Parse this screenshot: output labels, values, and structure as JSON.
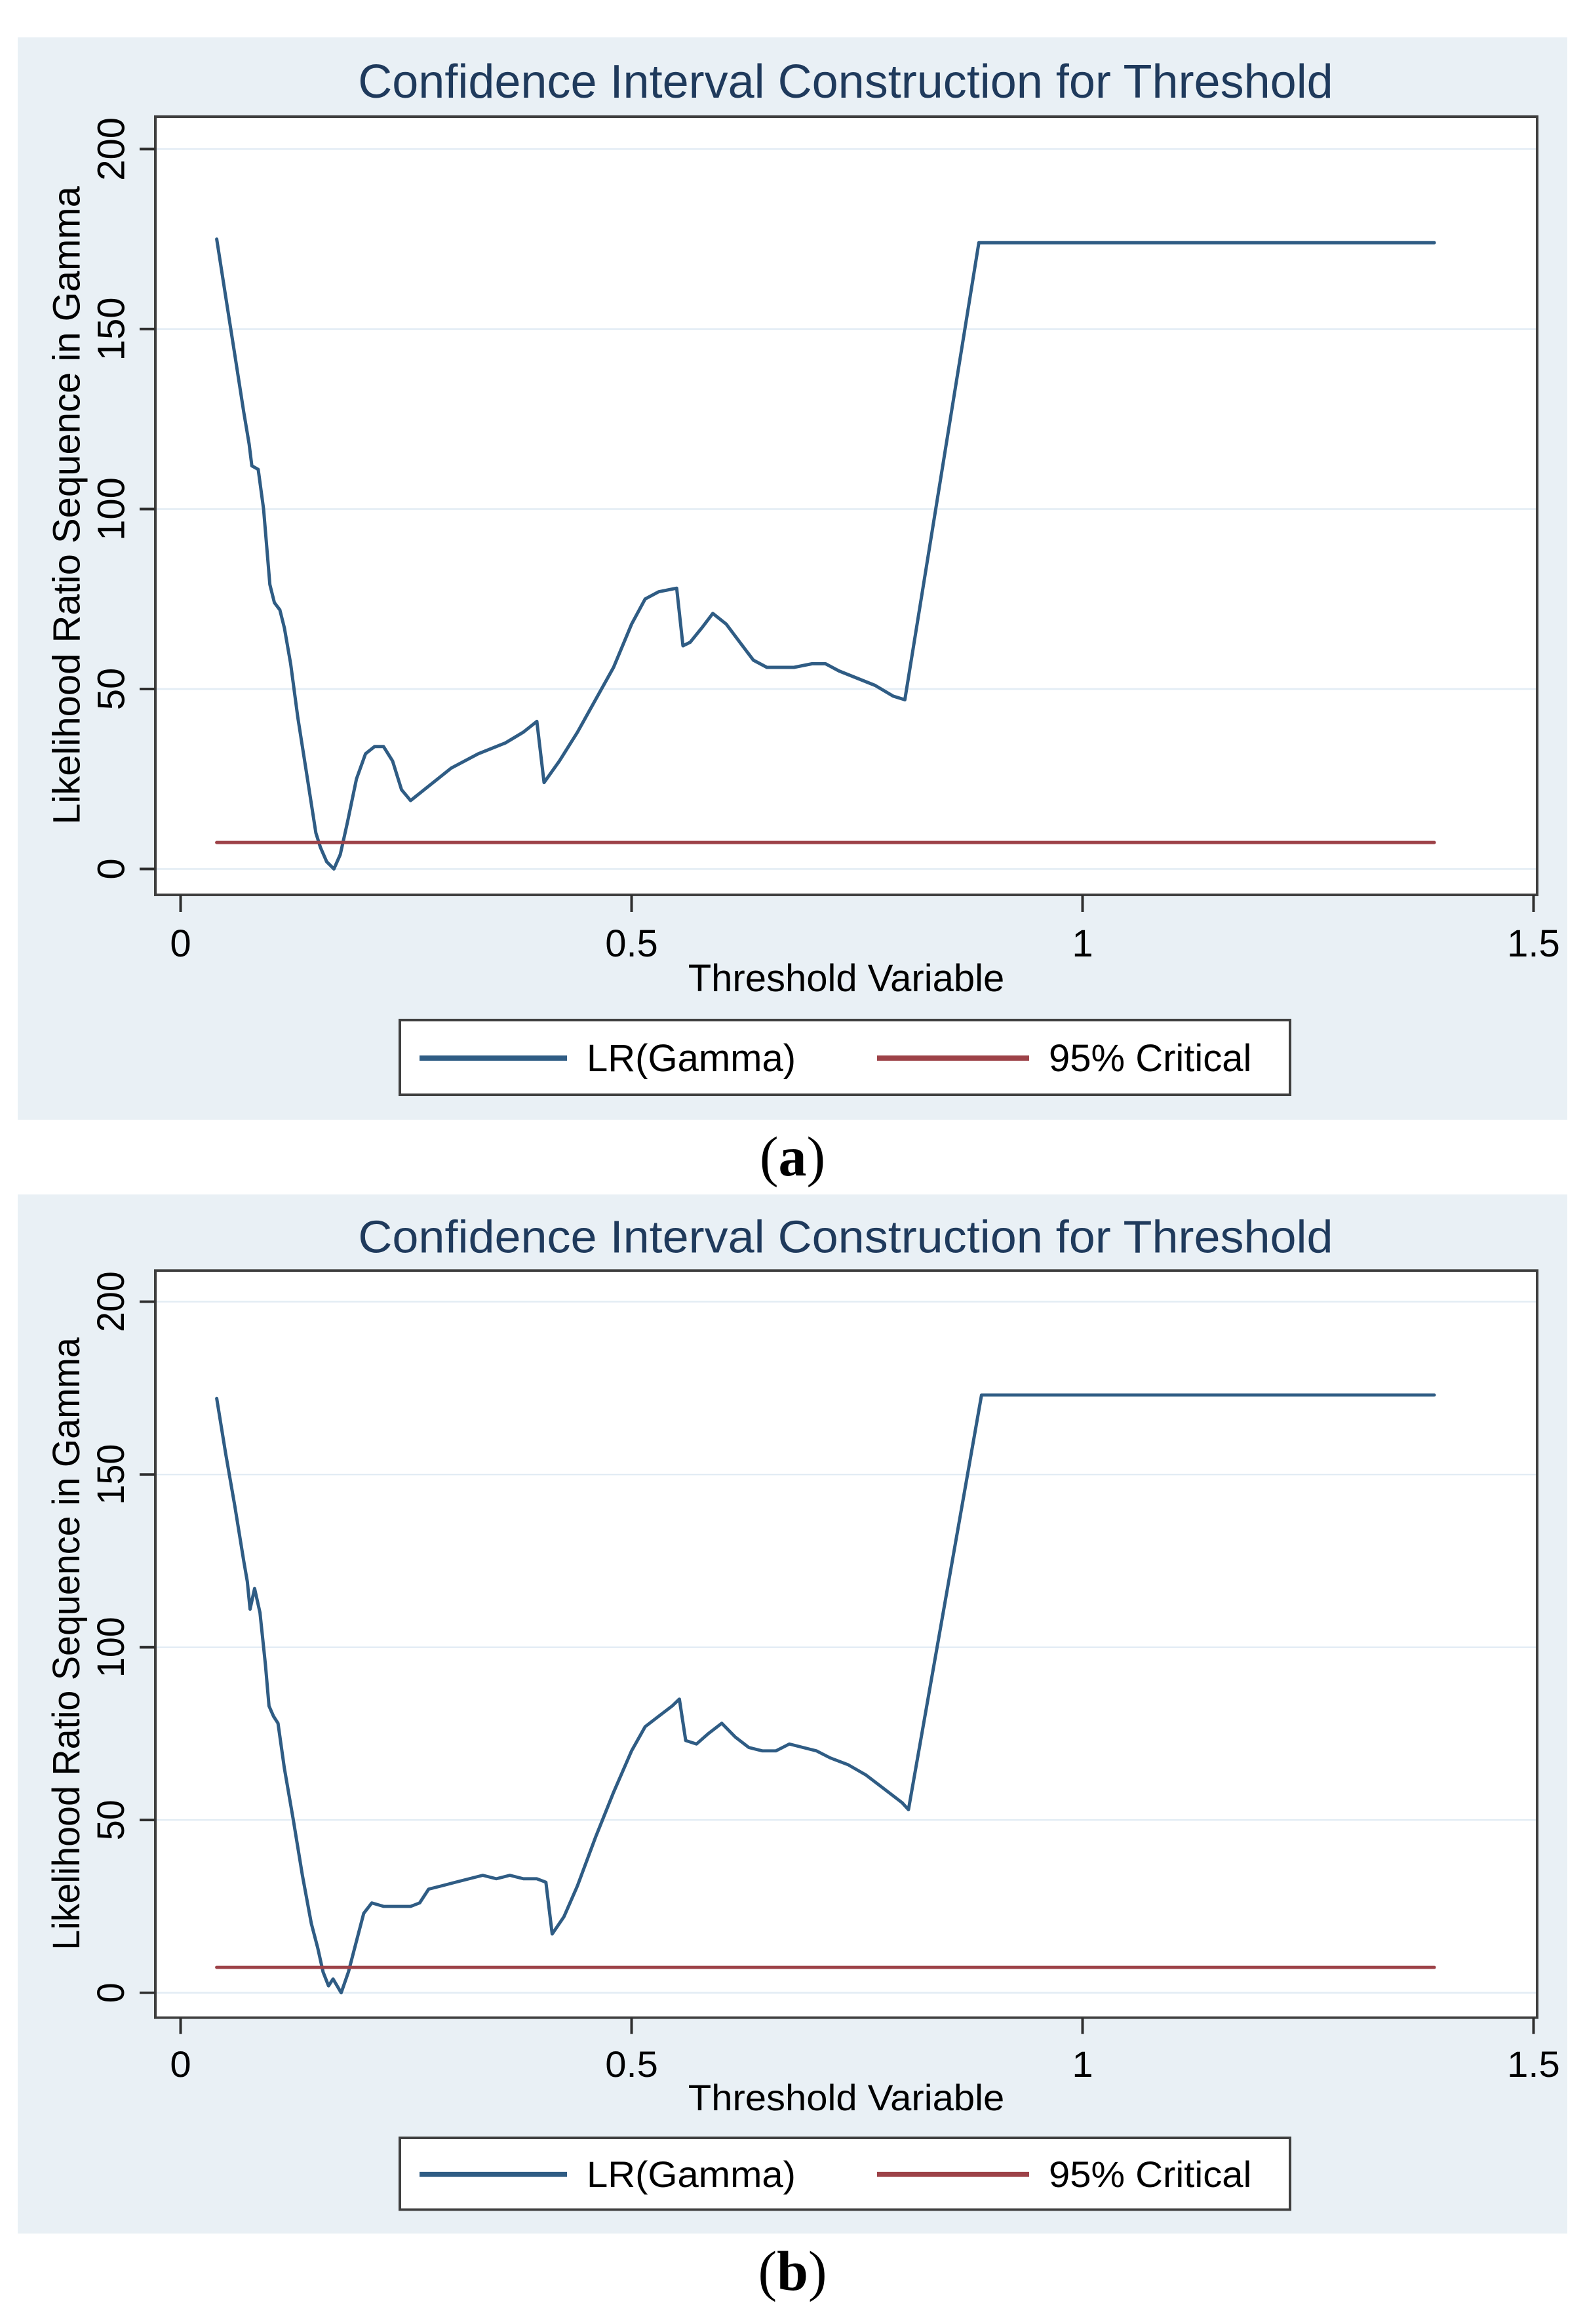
{
  "colors": {
    "page_bg": "#ffffff",
    "panel_bg": "#e9f0f5",
    "plot_bg": "#ffffff",
    "grid": "#e2ecf4",
    "frame": "#3f3f3f",
    "tick": "#2e2e2e",
    "text": "#000000",
    "title": "#1f3a5c",
    "lr_line": "#2f5c84",
    "critical_line": "#9d4248"
  },
  "chart_data": [
    {
      "panel": "a",
      "type": "line",
      "title": "Confidence Interval Construction for Threshold",
      "xlabel": "Threshold Variable",
      "ylabel": "Likelihood Ratio Sequence in Gamma",
      "caption": "(a)",
      "caption_parts": {
        "open": "(",
        "letter": "a",
        "close": ")"
      },
      "xlim": [
        -0.028,
        1.504
      ],
      "ylim": [
        -7.2,
        209
      ],
      "xticks": {
        "values": [
          0,
          0.5,
          1,
          1.5
        ],
        "labels": [
          "0",
          "0.5",
          "1",
          "1.5"
        ]
      },
      "yticks": {
        "values": [
          0,
          50,
          100,
          150,
          200
        ],
        "labels": [
          "0",
          "50",
          "100",
          "150",
          "200"
        ]
      },
      "grid": "horizontal",
      "legend": {
        "position": "bottom-center",
        "entries": [
          {
            "label": "LR(Gamma)",
            "color": "#2f5c84"
          },
          {
            "label": "95% Critical",
            "color": "#9d4248"
          }
        ]
      },
      "series": [
        {
          "name": "LR(Gamma)",
          "color": "#2f5c84",
          "points": [
            [
              0.04,
              175
            ],
            [
              0.05,
              159
            ],
            [
              0.06,
              143
            ],
            [
              0.07,
              127
            ],
            [
              0.076,
              118
            ],
            [
              0.079,
              112
            ],
            [
              0.086,
              111
            ],
            [
              0.092,
              100
            ],
            [
              0.096,
              88
            ],
            [
              0.099,
              79
            ],
            [
              0.104,
              74
            ],
            [
              0.11,
              72
            ],
            [
              0.115,
              67
            ],
            [
              0.122,
              57
            ],
            [
              0.13,
              42
            ],
            [
              0.14,
              26
            ],
            [
              0.15,
              10
            ],
            [
              0.155,
              6
            ],
            [
              0.162,
              2
            ],
            [
              0.17,
              0
            ],
            [
              0.177,
              4
            ],
            [
              0.185,
              13
            ],
            [
              0.195,
              25
            ],
            [
              0.205,
              32
            ],
            [
              0.215,
              34
            ],
            [
              0.225,
              34
            ],
            [
              0.235,
              30
            ],
            [
              0.245,
              22
            ],
            [
              0.255,
              19
            ],
            [
              0.27,
              22
            ],
            [
              0.285,
              25
            ],
            [
              0.3,
              28
            ],
            [
              0.33,
              32
            ],
            [
              0.36,
              35
            ],
            [
              0.38,
              38
            ],
            [
              0.395,
              41
            ],
            [
              0.403,
              24
            ],
            [
              0.42,
              30
            ],
            [
              0.44,
              38
            ],
            [
              0.46,
              47
            ],
            [
              0.48,
              56
            ],
            [
              0.5,
              68
            ],
            [
              0.515,
              75
            ],
            [
              0.53,
              77
            ],
            [
              0.55,
              78
            ],
            [
              0.557,
              62
            ],
            [
              0.565,
              63
            ],
            [
              0.578,
              67
            ],
            [
              0.59,
              71
            ],
            [
              0.605,
              68
            ],
            [
              0.62,
              63
            ],
            [
              0.635,
              58
            ],
            [
              0.65,
              56
            ],
            [
              0.665,
              56
            ],
            [
              0.68,
              56
            ],
            [
              0.7,
              57
            ],
            [
              0.715,
              57
            ],
            [
              0.73,
              55
            ],
            [
              0.75,
              53
            ],
            [
              0.77,
              51
            ],
            [
              0.79,
              48
            ],
            [
              0.803,
              47
            ],
            [
              0.885,
              174
            ],
            [
              1.39,
              174
            ]
          ]
        },
        {
          "name": "95% Critical",
          "color": "#9d4248",
          "points": [
            [
              0.04,
              7.35
            ],
            [
              1.39,
              7.35
            ]
          ]
        }
      ]
    },
    {
      "panel": "b",
      "type": "line",
      "title": "Confidence Interval Construction for Threshold",
      "xlabel": "Threshold Variable",
      "ylabel": "Likelihood Ratio Sequence in Gamma",
      "caption": "(b)",
      "caption_parts": {
        "open": "(",
        "letter": "b",
        "close": ")"
      },
      "xlim": [
        -0.028,
        1.504
      ],
      "ylim": [
        -7.2,
        209
      ],
      "xticks": {
        "values": [
          0,
          0.5,
          1,
          1.5
        ],
        "labels": [
          "0",
          "0.5",
          "1",
          "1.5"
        ]
      },
      "yticks": {
        "values": [
          0,
          50,
          100,
          150,
          200
        ],
        "labels": [
          "0",
          "50",
          "100",
          "150",
          "200"
        ]
      },
      "grid": "horizontal",
      "legend": {
        "position": "bottom-center",
        "entries": [
          {
            "label": "LR(Gamma)",
            "color": "#2f5c84"
          },
          {
            "label": "95% Critical",
            "color": "#9d4248"
          }
        ]
      },
      "series": [
        {
          "name": "LR(Gamma)",
          "color": "#2f5c84",
          "points": [
            [
              0.04,
              172
            ],
            [
              0.05,
              156
            ],
            [
              0.06,
              141
            ],
            [
              0.07,
              125
            ],
            [
              0.074,
              119
            ],
            [
              0.077,
              111
            ],
            [
              0.082,
              117
            ],
            [
              0.088,
              110
            ],
            [
              0.094,
              95
            ],
            [
              0.098,
              83
            ],
            [
              0.103,
              80
            ],
            [
              0.108,
              78
            ],
            [
              0.115,
              65
            ],
            [
              0.125,
              50
            ],
            [
              0.135,
              34
            ],
            [
              0.145,
              20
            ],
            [
              0.152,
              13
            ],
            [
              0.158,
              6
            ],
            [
              0.164,
              2
            ],
            [
              0.169,
              4
            ],
            [
              0.178,
              0
            ],
            [
              0.186,
              6
            ],
            [
              0.194,
              14
            ],
            [
              0.203,
              23
            ],
            [
              0.212,
              26
            ],
            [
              0.225,
              25
            ],
            [
              0.24,
              25
            ],
            [
              0.255,
              25
            ],
            [
              0.265,
              26
            ],
            [
              0.275,
              30
            ],
            [
              0.29,
              31
            ],
            [
              0.305,
              32
            ],
            [
              0.32,
              33
            ],
            [
              0.335,
              34
            ],
            [
              0.35,
              33
            ],
            [
              0.365,
              34
            ],
            [
              0.38,
              33
            ],
            [
              0.395,
              33
            ],
            [
              0.405,
              32
            ],
            [
              0.412,
              17
            ],
            [
              0.425,
              22
            ],
            [
              0.44,
              31
            ],
            [
              0.46,
              45
            ],
            [
              0.48,
              58
            ],
            [
              0.5,
              70
            ],
            [
              0.515,
              77
            ],
            [
              0.53,
              80
            ],
            [
              0.545,
              83
            ],
            [
              0.553,
              85
            ],
            [
              0.56,
              73
            ],
            [
              0.572,
              72
            ],
            [
              0.585,
              75
            ],
            [
              0.6,
              78
            ],
            [
              0.615,
              74
            ],
            [
              0.63,
              71
            ],
            [
              0.645,
              70
            ],
            [
              0.66,
              70
            ],
            [
              0.675,
              72
            ],
            [
              0.69,
              71
            ],
            [
              0.705,
              70
            ],
            [
              0.72,
              68
            ],
            [
              0.74,
              66
            ],
            [
              0.76,
              63
            ],
            [
              0.78,
              59
            ],
            [
              0.8,
              55
            ],
            [
              0.807,
              53
            ],
            [
              0.888,
              173
            ],
            [
              1.39,
              173
            ]
          ]
        },
        {
          "name": "95% Critical",
          "color": "#9d4248",
          "points": [
            [
              0.04,
              7.35
            ],
            [
              1.39,
              7.35
            ]
          ]
        }
      ]
    }
  ]
}
